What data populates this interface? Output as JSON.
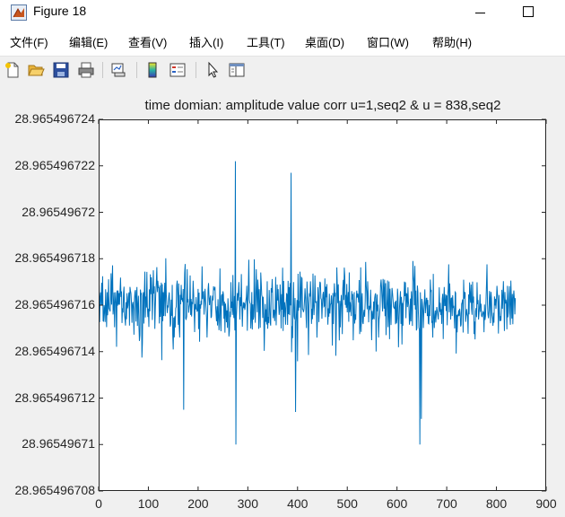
{
  "window": {
    "title": "Figure 18",
    "minimize_icon": "minimize-icon",
    "maximize_icon": "maximize-icon"
  },
  "menu": [
    {
      "label": "文件(F)"
    },
    {
      "label": "编辑(E)"
    },
    {
      "label": "查看(V)"
    },
    {
      "label": "插入(I)"
    },
    {
      "label": "工具(T)"
    },
    {
      "label": "桌面(D)"
    },
    {
      "label": "窗口(W)"
    },
    {
      "label": "帮助(H)"
    }
  ],
  "toolbar": [
    {
      "icon": "new-figure-icon"
    },
    {
      "icon": "open-file-icon"
    },
    {
      "icon": "save-icon"
    },
    {
      "icon": "print-icon"
    },
    {
      "icon": "link-plot-icon"
    },
    {
      "icon": "insert-colorbar-icon"
    },
    {
      "icon": "insert-legend-icon"
    },
    {
      "icon": "edit-plot-icon"
    },
    {
      "icon": "property-inspector-icon"
    }
  ],
  "chart_data": {
    "type": "line",
    "title": "time domian: amplitude value corr u=1,seq2 & u = 838,seq2",
    "xlabel": "",
    "ylabel": "",
    "xlim": [
      0,
      900
    ],
    "ylim": [
      28.965496708,
      28.965496724
    ],
    "xticks": [
      "0",
      "100",
      "200",
      "300",
      "400",
      "500",
      "600",
      "700",
      "800",
      "900"
    ],
    "yticks": [
      "28.965496708",
      "28.96549671",
      "28.965496712",
      "28.965496714",
      "28.965496716",
      "28.965496718",
      "28.96549672",
      "28.965496722",
      "28.965496724"
    ],
    "grid": false,
    "series": [
      {
        "color": "#0072BD",
        "n_points": 838,
        "baseline": 28.965496716,
        "noise_amplitude": 1e-09,
        "x_range": [
          1,
          838
        ],
        "y_range_observed": [
          28.96549671,
          28.9654967222
        ],
        "extremes": [
          {
            "x": 275,
            "y": 28.9654967222
          },
          {
            "x": 275,
            "y": 28.96549671
          },
          {
            "x": 387,
            "y": 28.9654967217
          },
          {
            "x": 645,
            "y": 28.96549671
          },
          {
            "x": 170,
            "y": 28.9654967115
          },
          {
            "x": 395,
            "y": 28.9654967114
          },
          {
            "x": 648,
            "y": 28.9654967111
          }
        ]
      }
    ]
  }
}
